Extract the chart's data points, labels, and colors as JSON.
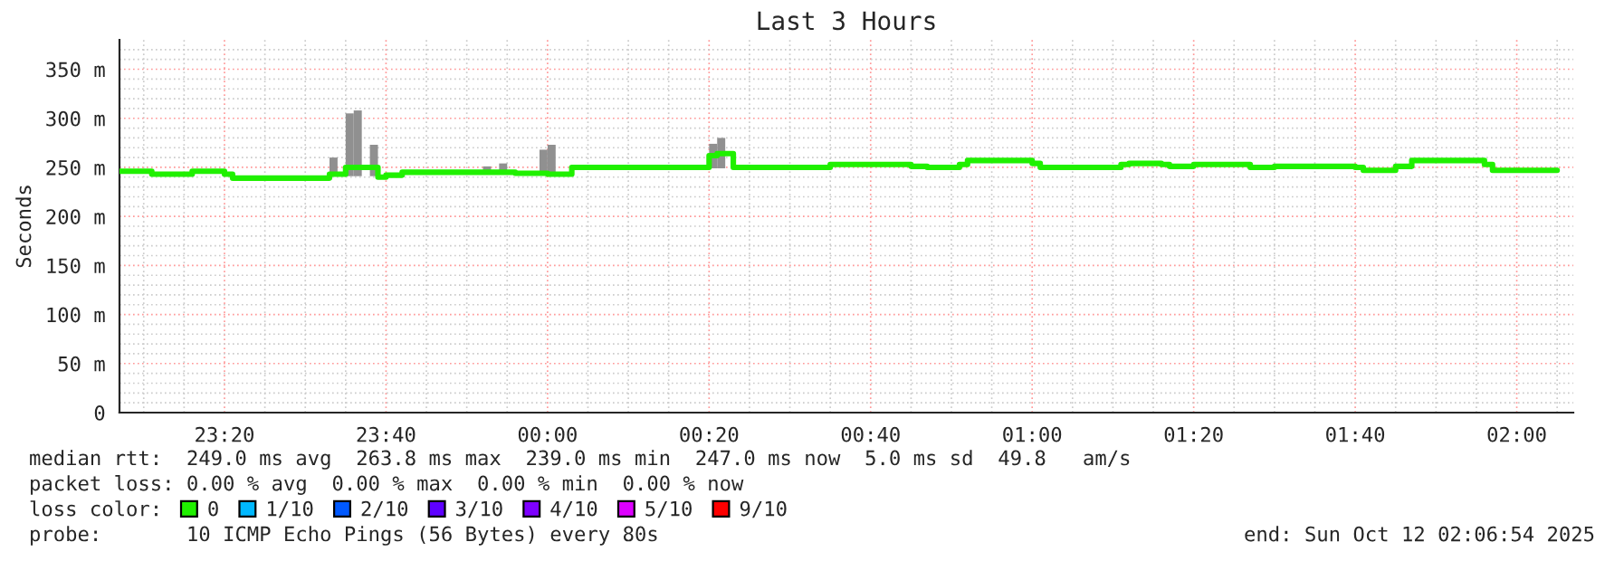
{
  "chart_data": {
    "type": "step",
    "title": "Last 3 Hours",
    "ylabel": "Seconds",
    "xlim": [
      "2025-10-11T23:07",
      "2025-10-12T02:07"
    ],
    "ylim": [
      0,
      380
    ],
    "xticks": [
      {
        "value": "2025-10-11T23:10",
        "label": null
      },
      {
        "value": "2025-10-11T23:15",
        "label": null
      },
      {
        "value": "2025-10-11T23:20",
        "label": "23:20"
      },
      {
        "value": "2025-10-11T23:25",
        "label": null
      },
      {
        "value": "2025-10-11T23:30",
        "label": null
      },
      {
        "value": "2025-10-11T23:35",
        "label": null
      },
      {
        "value": "2025-10-11T23:40",
        "label": "23:40"
      },
      {
        "value": "2025-10-11T23:45",
        "label": null
      },
      {
        "value": "2025-10-11T23:50",
        "label": null
      },
      {
        "value": "2025-10-11T23:55",
        "label": null
      },
      {
        "value": "2025-10-12T00:00",
        "label": "00:00"
      },
      {
        "value": "2025-10-12T00:05",
        "label": null
      },
      {
        "value": "2025-10-12T00:10",
        "label": null
      },
      {
        "value": "2025-10-12T00:15",
        "label": null
      },
      {
        "value": "2025-10-12T00:20",
        "label": "00:20"
      },
      {
        "value": "2025-10-12T00:25",
        "label": null
      },
      {
        "value": "2025-10-12T00:30",
        "label": null
      },
      {
        "value": "2025-10-12T00:35",
        "label": null
      },
      {
        "value": "2025-10-12T00:40",
        "label": "00:40"
      },
      {
        "value": "2025-10-12T00:45",
        "label": null
      },
      {
        "value": "2025-10-12T00:50",
        "label": null
      },
      {
        "value": "2025-10-12T00:55",
        "label": null
      },
      {
        "value": "2025-10-12T01:00",
        "label": "01:00"
      },
      {
        "value": "2025-10-12T01:05",
        "label": null
      },
      {
        "value": "2025-10-12T01:10",
        "label": null
      },
      {
        "value": "2025-10-12T01:15",
        "label": null
      },
      {
        "value": "2025-10-12T01:20",
        "label": "01:20"
      },
      {
        "value": "2025-10-12T01:25",
        "label": null
      },
      {
        "value": "2025-10-12T01:30",
        "label": null
      },
      {
        "value": "2025-10-12T01:35",
        "label": null
      },
      {
        "value": "2025-10-12T01:40",
        "label": "01:40"
      },
      {
        "value": "2025-10-12T01:45",
        "label": null
      },
      {
        "value": "2025-10-12T01:50",
        "label": null
      },
      {
        "value": "2025-10-12T01:55",
        "label": null
      },
      {
        "value": "2025-10-12T02:00",
        "label": "02:00"
      },
      {
        "value": "2025-10-12T02:05",
        "label": null
      }
    ],
    "yticks": [
      0,
      {
        "value": 10,
        "label": null
      },
      {
        "value": 20,
        "label": null
      },
      {
        "value": 30,
        "label": null
      },
      {
        "value": 40,
        "label": null
      },
      {
        "value": 50,
        "label": "50 m"
      },
      {
        "value": 60,
        "label": null
      },
      {
        "value": 70,
        "label": null
      },
      {
        "value": 80,
        "label": null
      },
      {
        "value": 90,
        "label": null
      },
      {
        "value": 100,
        "label": "100 m"
      },
      {
        "value": 110,
        "label": null
      },
      {
        "value": 120,
        "label": null
      },
      {
        "value": 130,
        "label": null
      },
      {
        "value": 140,
        "label": null
      },
      {
        "value": 150,
        "label": "150 m"
      },
      {
        "value": 160,
        "label": null
      },
      {
        "value": 170,
        "label": null
      },
      {
        "value": 180,
        "label": null
      },
      {
        "value": 190,
        "label": null
      },
      {
        "value": 200,
        "label": "200 m"
      },
      {
        "value": 210,
        "label": null
      },
      {
        "value": 220,
        "label": null
      },
      {
        "value": 230,
        "label": null
      },
      {
        "value": 240,
        "label": null
      },
      {
        "value": 250,
        "label": "250 m"
      },
      {
        "value": 260,
        "label": null
      },
      {
        "value": 270,
        "label": null
      },
      {
        "value": 280,
        "label": null
      },
      {
        "value": 290,
        "label": null
      },
      {
        "value": 300,
        "label": "300 m"
      },
      {
        "value": 310,
        "label": null
      },
      {
        "value": 320,
        "label": null
      },
      {
        "value": 330,
        "label": null
      },
      {
        "value": 340,
        "label": null
      },
      {
        "value": 350,
        "label": "350 m"
      },
      {
        "value": 360,
        "label": null
      },
      {
        "value": 370,
        "label": null
      }
    ],
    "grid": true,
    "legend": "bottom",
    "legend_title": "loss color:",
    "series": [
      {
        "type": "bar",
        "color": "#909090",
        "x": [
          "2025-10-11T23:33",
          "2025-10-11T23:35",
          "2025-10-11T23:36",
          "2025-10-11T23:38",
          "2025-10-11T23:52",
          "2025-10-11T23:54",
          "2025-10-11T23:59",
          "2025-10-12T00:00",
          "2025-10-12T00:20",
          "2025-10-12T00:21"
        ],
        "base": [
          241,
          241,
          241,
          241,
          243,
          243,
          243,
          242,
          249,
          249
        ],
        "values": [
          19,
          64,
          67,
          32,
          8,
          11,
          25,
          31,
          25,
          31
        ]
      },
      {
        "name": "0",
        "color": "#20f000",
        "x": [
          "2025-10-11T23:07",
          "2025-10-11T23:11",
          "2025-10-11T23:16",
          "2025-10-11T23:20",
          "2025-10-11T23:21",
          "2025-10-11T23:33",
          "2025-10-11T23:35",
          "2025-10-11T23:39",
          "2025-10-11T23:40",
          "2025-10-11T23:42",
          "2025-10-11T23:56",
          "2025-10-12T00:00",
          "2025-10-12T00:03",
          "2025-10-12T00:20",
          "2025-10-12T00:21",
          "2025-10-12T00:23",
          "2025-10-12T00:35",
          "2025-10-12T00:45",
          "2025-10-12T00:47",
          "2025-10-12T00:51",
          "2025-10-12T00:52",
          "2025-10-12T01:00",
          "2025-10-12T01:01",
          "2025-10-12T01:11",
          "2025-10-12T01:12",
          "2025-10-12T01:16",
          "2025-10-12T01:17",
          "2025-10-12T01:20",
          "2025-10-12T01:27",
          "2025-10-12T01:30",
          "2025-10-12T01:40",
          "2025-10-12T01:41",
          "2025-10-12T01:45",
          "2025-10-12T01:47",
          "2025-10-12T01:56",
          "2025-10-12T01:57",
          "2025-10-12T02:05"
        ],
        "values": [
          246,
          243,
          246,
          243,
          239,
          243,
          250,
          240,
          242,
          245,
          244,
          243,
          250,
          262,
          264,
          250,
          253,
          251,
          250,
          253,
          257,
          254,
          250,
          253,
          254,
          253,
          251,
          253,
          250,
          251,
          250,
          247,
          251,
          257,
          253,
          247,
          247
        ]
      },
      {
        "name": "1/10",
        "color": "#00b8ff"
      },
      {
        "name": "2/10",
        "color": "#0059ff"
      },
      {
        "name": "3/10",
        "color": "#5e00ff"
      },
      {
        "name": "4/10",
        "color": "#7e00ff"
      },
      {
        "name": "5/10",
        "color": "#dd00ff"
      },
      {
        "name": "9/10",
        "color": "#ff0000"
      }
    ],
    "annotations": [
      "median rtt:  249.0 ms avg  263.8 ms max  239.0 ms min  247.0 ms now  5.0 ms sd  49.8   am/s",
      "packet loss: 0.00 % avg  0.00 % max  0.00 % min  0.00 % now",
      "probe:       10 ICMP Echo Pings (56 Bytes) every 80s",
      "end: Sun Oct 12 02:06:54 2025"
    ]
  }
}
